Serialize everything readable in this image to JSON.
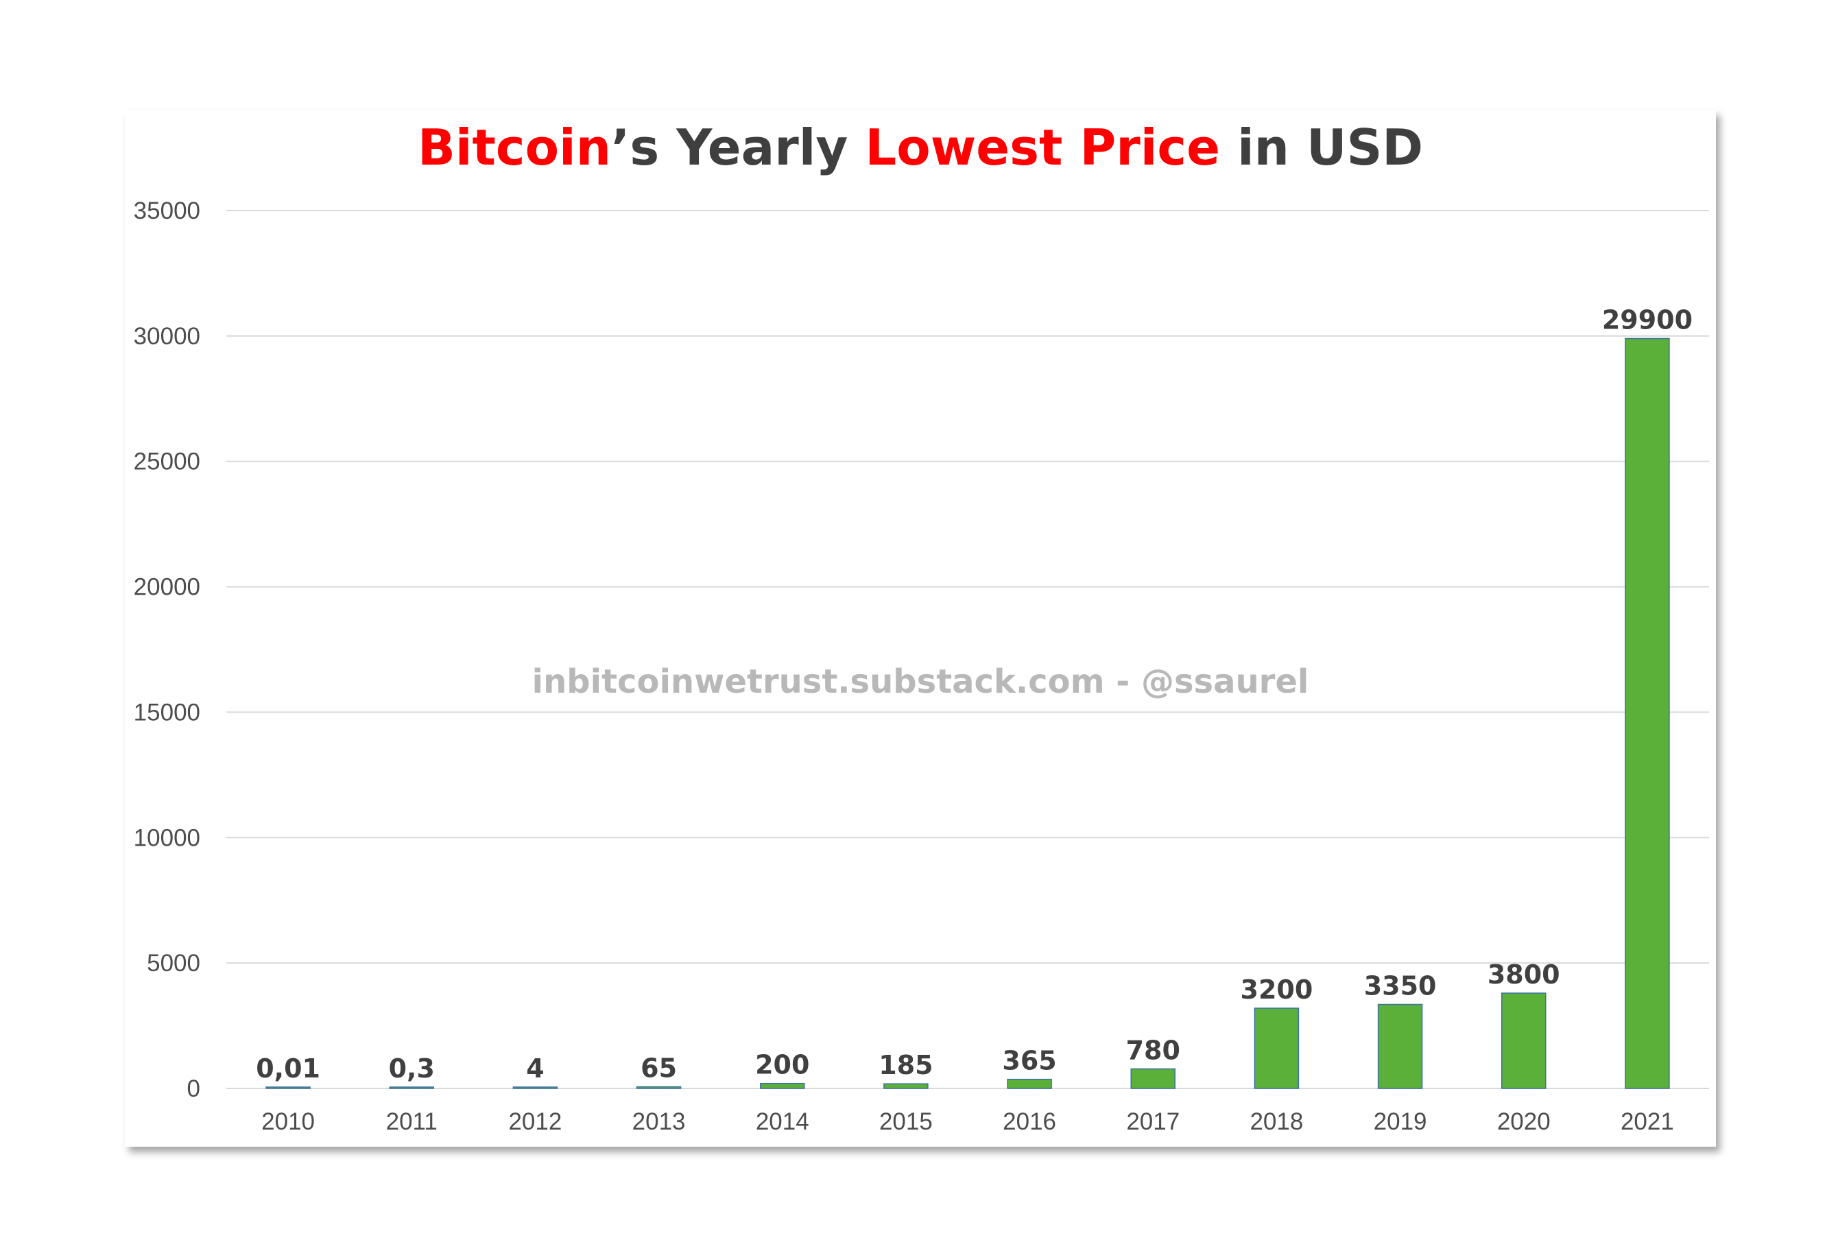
{
  "chart_data": {
    "type": "bar",
    "title_parts": [
      {
        "text": "Bitcoin",
        "color": "#ff0000"
      },
      {
        "text": "’s Yearly ",
        "color": "#3f3f3f"
      },
      {
        "text": "Lowest Price",
        "color": "#ff0000"
      },
      {
        "text": " in USD",
        "color": "#3f3f3f"
      }
    ],
    "categories": [
      "2010",
      "2011",
      "2012",
      "2013",
      "2014",
      "2015",
      "2016",
      "2017",
      "2018",
      "2019",
      "2020",
      "2021"
    ],
    "values": [
      0.01,
      0.3,
      4,
      65,
      200,
      185,
      365,
      780,
      3200,
      3350,
      3800,
      29900
    ],
    "data_labels": [
      "0,01",
      "0,3",
      "4",
      "65",
      "200",
      "185",
      "365",
      "780",
      "3200",
      "3350",
      "3800",
      "29900"
    ],
    "ylim": [
      0,
      35000
    ],
    "yticks": [
      0,
      5000,
      10000,
      15000,
      20000,
      25000,
      30000,
      35000
    ],
    "grid": true,
    "xlabel": "",
    "ylabel": "",
    "watermark": "inbitcoinwetrust.substack.com - @ssaurel",
    "colors": {
      "bar_fill": "#5bb03a",
      "bar_edge": "#3d6fa8",
      "grid": "#d9d9d9",
      "axis_line": "#d9d9d9"
    }
  }
}
